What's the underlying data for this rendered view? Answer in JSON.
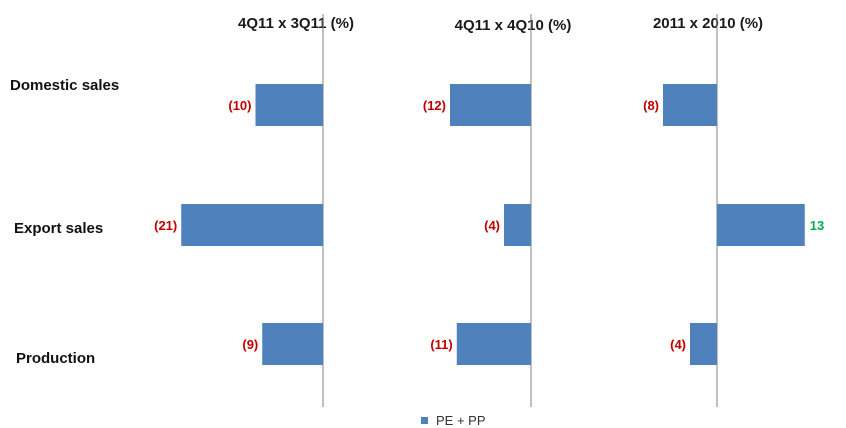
{
  "chart_data": {
    "type": "bar",
    "orientation": "horizontal",
    "categories": [
      "Domestic sales",
      "Export sales",
      "Production"
    ],
    "panels": [
      {
        "title": "4Q11 x 3Q11 (%)",
        "values": [
          -10,
          -21,
          -9
        ],
        "labels": [
          "(10)",
          "(21)",
          "(9)"
        ]
      },
      {
        "title": "4Q11 x 4Q10 (%)",
        "values": [
          -12,
          -4,
          -11
        ],
        "labels": [
          "(12)",
          "(4)",
          "(11)"
        ]
      },
      {
        "title": "2011 x 2010 (%)",
        "values": [
          -8,
          13,
          -4
        ],
        "labels": [
          "(8)",
          "13",
          "(4)"
        ]
      }
    ],
    "series": [
      {
        "name": "PE + PP"
      }
    ],
    "legend": {
      "position": "bottom",
      "label": "PE + PP"
    },
    "grid": false
  },
  "colors": {
    "bar": "#4f81bd",
    "negative_label": "#c00000",
    "positive_label": "#00b050",
    "axis": "#808080"
  }
}
